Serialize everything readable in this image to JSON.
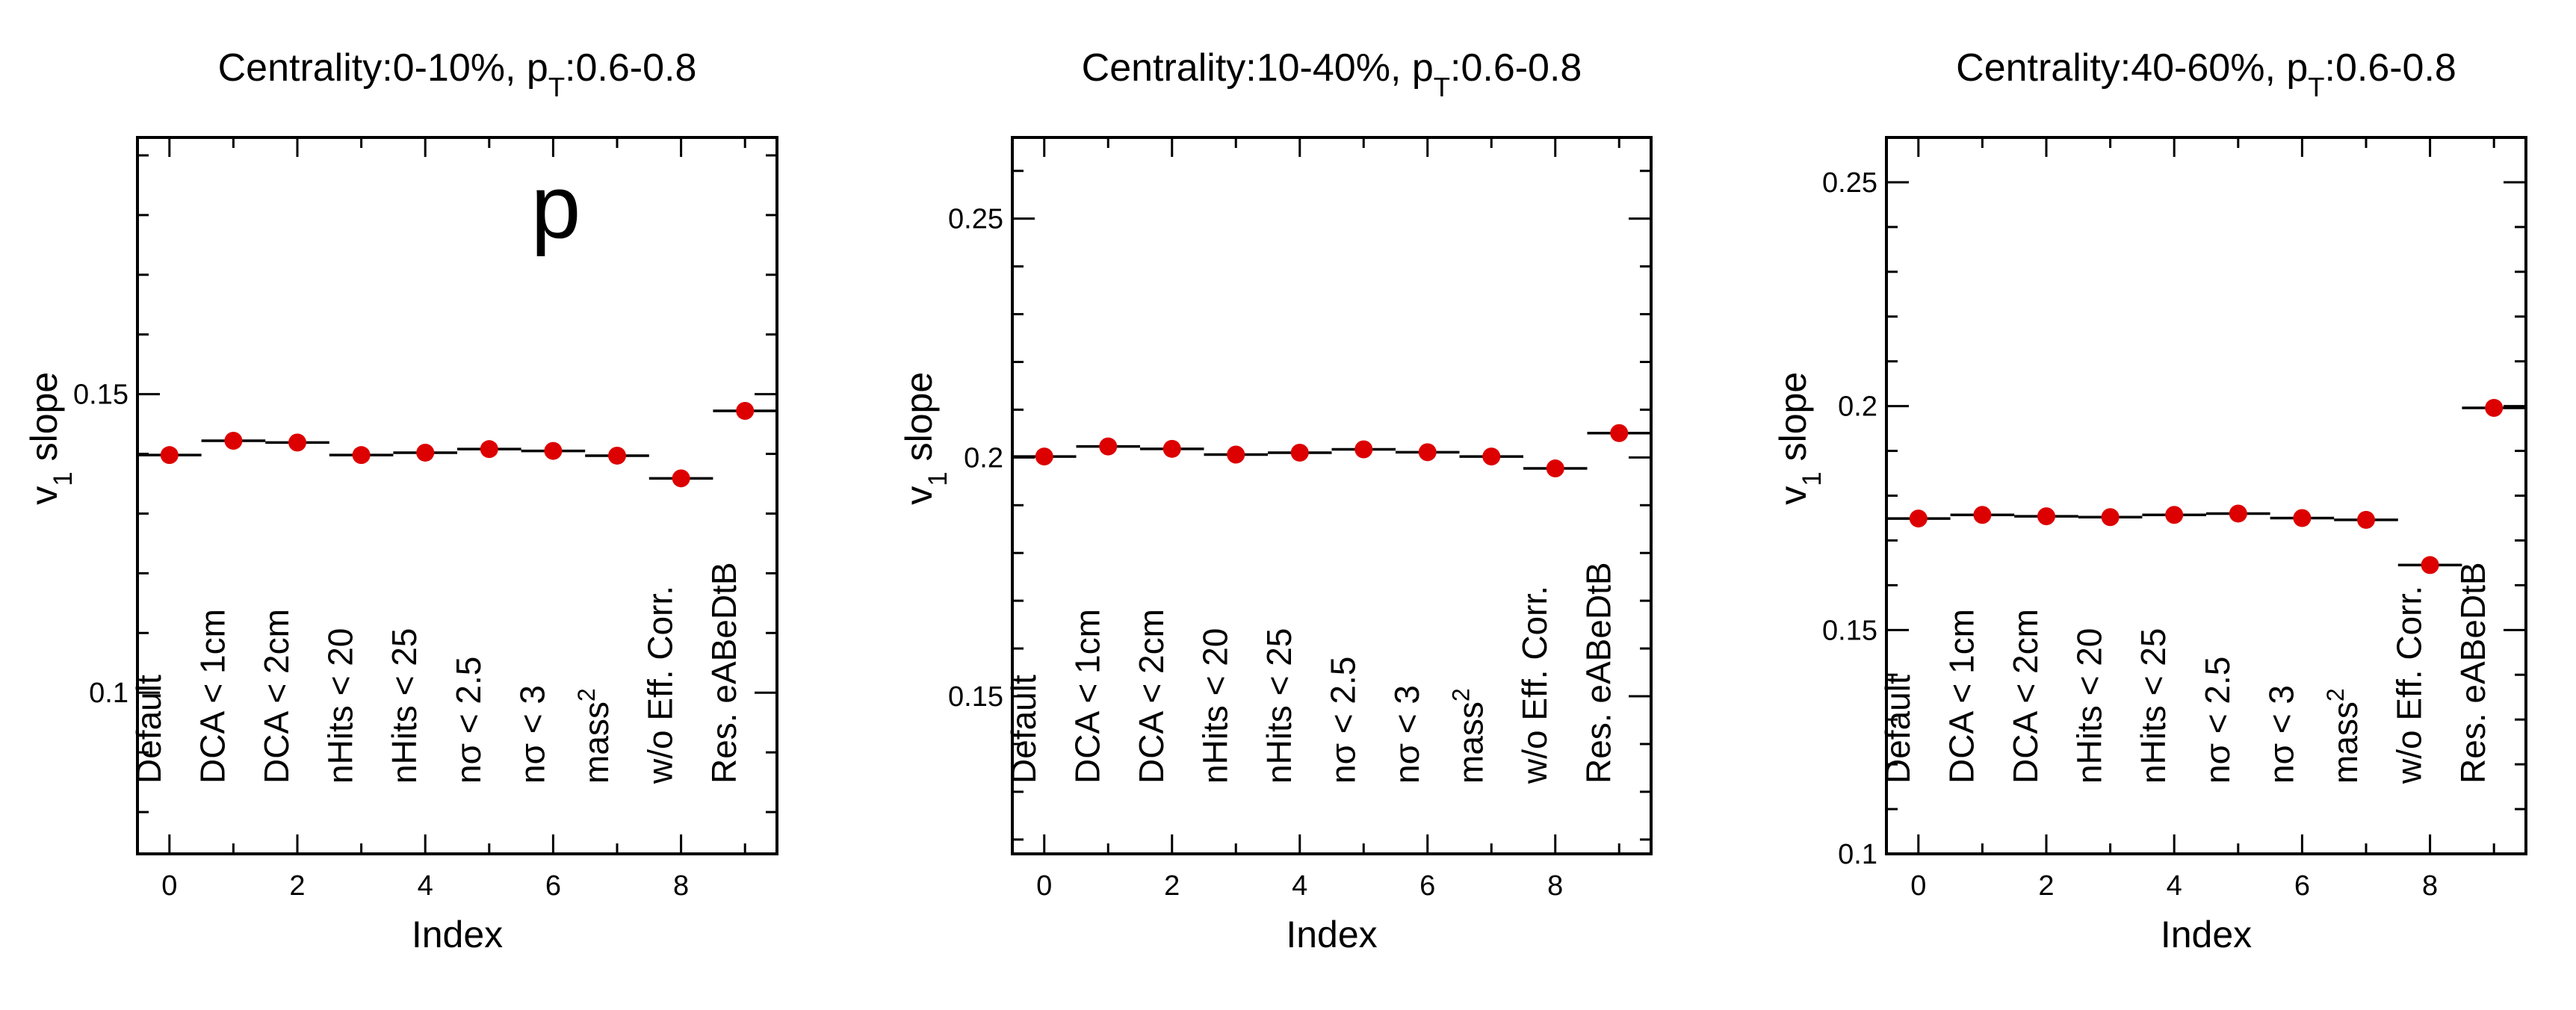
{
  "figure": {
    "particle_label": "p",
    "xlabel": "Index",
    "ylabel_main": "v",
    "ylabel_sub": "1",
    "ylabel_rest": " slope"
  },
  "colors": {
    "marker": "#dd0000",
    "axis": "#000000",
    "background": "#ffffff"
  },
  "chart_data": [
    {
      "type": "scatter",
      "title": {
        "main": "Centrality:0-10%, p",
        "sub": "T",
        "rest": ":0.6-0.8"
      },
      "xlabel": "Index",
      "ylabel": "v1 slope",
      "xlim": [
        -0.5,
        9.5
      ],
      "ylim": [
        0.073,
        0.193
      ],
      "xticks": [
        0,
        2,
        4,
        6,
        8
      ],
      "yticks": [
        0.1,
        0.15
      ],
      "yticklabels": [
        "0.1",
        "0.15"
      ],
      "grid": false,
      "categories": [
        "Default",
        "DCA < 1cm",
        "DCA < 2cm",
        "nHits < 20",
        "nHits < 25",
        "nσ < 2.5",
        "nσ < 3",
        "mass²",
        "w/o Eff. Corr.",
        "Res. eABeDtB"
      ],
      "x": [
        0,
        1,
        2,
        3,
        4,
        5,
        6,
        7,
        8,
        9
      ],
      "y": [
        0.1398,
        0.1422,
        0.1419,
        0.1398,
        0.1402,
        0.1408,
        0.1405,
        0.1397,
        0.1359,
        0.1472
      ],
      "series": [
        {
          "values": [
            0.1398,
            0.1422,
            0.1419,
            0.1398,
            0.1402,
            0.1408,
            0.1405,
            0.1397,
            0.1359,
            0.1472
          ]
        }
      ]
    },
    {
      "type": "scatter",
      "title": {
        "main": "Centrality:10-40%, p",
        "sub": "T",
        "rest": ":0.6-0.8"
      },
      "xlabel": "Index",
      "ylabel": "v1 slope",
      "xlim": [
        -0.5,
        9.5
      ],
      "ylim": [
        0.117,
        0.267
      ],
      "xticks": [
        0,
        2,
        4,
        6,
        8
      ],
      "yticks": [
        0.15,
        0.2,
        0.25
      ],
      "yticklabels": [
        "0.15",
        "0.2",
        "0.25"
      ],
      "grid": false,
      "categories": [
        "Default",
        "DCA < 1cm",
        "DCA < 2cm",
        "nHits < 20",
        "nHits < 25",
        "nσ < 2.5",
        "nσ < 3",
        "mass²",
        "w/o Eff. Corr.",
        "Res. eABeDtB"
      ],
      "x": [
        0,
        1,
        2,
        3,
        4,
        5,
        6,
        7,
        8,
        9
      ],
      "y": [
        0.2002,
        0.2023,
        0.2018,
        0.2006,
        0.201,
        0.2017,
        0.2011,
        0.2002,
        0.1977,
        0.2051
      ],
      "series": [
        {
          "values": [
            0.2002,
            0.2023,
            0.2018,
            0.2006,
            0.201,
            0.2017,
            0.2011,
            0.2002,
            0.1977,
            0.2051
          ]
        }
      ]
    },
    {
      "type": "scatter",
      "title": {
        "main": "Centrality:40-60%, p",
        "sub": "T",
        "rest": ":0.6-0.8"
      },
      "xlabel": "Index",
      "ylabel": "v1 slope",
      "xlim": [
        -0.5,
        9.5
      ],
      "ylim": [
        0.1,
        0.26
      ],
      "xticks": [
        0,
        2,
        4,
        6,
        8
      ],
      "yticks": [
        0.1,
        0.15,
        0.2,
        0.25
      ],
      "yticklabels": [
        "0.1",
        "0.15",
        "0.2",
        "0.25"
      ],
      "grid": false,
      "categories": [
        "Default",
        "DCA < 1cm",
        "DCA < 2cm",
        "nHits < 20",
        "nHits < 25",
        "nσ < 2.5",
        "nσ < 3",
        "mass²",
        "w/o Eff. Corr.",
        "Res. eABeDtB"
      ],
      "x": [
        0,
        1,
        2,
        3,
        4,
        5,
        6,
        7,
        8,
        9
      ],
      "y": [
        0.1749,
        0.1757,
        0.1754,
        0.1752,
        0.1757,
        0.176,
        0.175,
        0.1746,
        0.1645,
        0.1996
      ],
      "series": [
        {
          "values": [
            0.1749,
            0.1757,
            0.1754,
            0.1752,
            0.1757,
            0.176,
            0.175,
            0.1746,
            0.1645,
            0.1996
          ]
        }
      ]
    }
  ]
}
